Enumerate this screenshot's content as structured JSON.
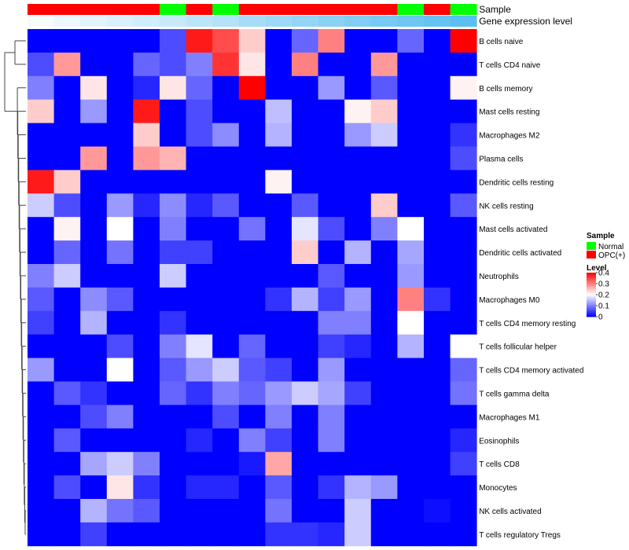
{
  "chart_data": {
    "type": "heatmap",
    "title": "",
    "annotation_tracks": [
      {
        "name": "Sample",
        "values": [
          "OPC(+)",
          "OPC(+)",
          "OPC(+)",
          "OPC(+)",
          "OPC(+)",
          "Normal",
          "OPC(+)",
          "Normal",
          "OPC(+)",
          "OPC(+)",
          "OPC(+)",
          "OPC(+)",
          "OPC(+)",
          "OPC(+)",
          "Normal",
          "OPC(+)",
          "Normal"
        ]
      },
      {
        "name": "Gene expression level",
        "values": [
          0.02,
          0.04,
          0.06,
          0.08,
          0.1,
          0.12,
          0.14,
          0.16,
          0.19,
          0.21,
          0.23,
          0.25,
          0.27,
          0.29,
          0.31,
          0.33,
          0.35
        ]
      }
    ],
    "rows": [
      "B cells naive",
      "T cells CD4 naive",
      "B cells memory",
      "Mast cells resting",
      "Macrophages M2",
      "Plasma cells",
      "Dendritic cells resting",
      "NK cells resting",
      "Mast cells activated",
      "Dendritic cells activated",
      "Neutrophils",
      "Macrophages M0",
      "T cells CD4 memory resting",
      "T cells follicular helper",
      "T cells CD4 memory activated",
      "T cells gamma delta",
      "Macrophages M1",
      "Eosinophils",
      "T cells CD8",
      "Monocytes",
      "NK cells activated",
      "T cells regulatory  Tregs"
    ],
    "values": [
      [
        0.0,
        0.0,
        0.0,
        0.0,
        0.0,
        0.06,
        0.38,
        0.34,
        0.24,
        0.0,
        0.08,
        0.3,
        0.0,
        0.0,
        0.08,
        0.0,
        0.4
      ],
      [
        0.06,
        0.28,
        0.0,
        0.0,
        0.08,
        0.06,
        0.1,
        0.36,
        0.22,
        0.0,
        0.3,
        0.0,
        0.0,
        0.28,
        0.0,
        0.0,
        0.0
      ],
      [
        0.1,
        0.0,
        0.22,
        0.0,
        0.03,
        0.22,
        0.08,
        0.0,
        0.4,
        0.0,
        0.0,
        0.12,
        0.0,
        0.07,
        0.0,
        0.0,
        0.21
      ],
      [
        0.24,
        0.0,
        0.12,
        0.0,
        0.38,
        0.0,
        0.06,
        0.0,
        0.0,
        0.15,
        0.0,
        0.0,
        0.21,
        0.24,
        0.0,
        0.0,
        0.0
      ],
      [
        0.0,
        0.0,
        0.0,
        0.0,
        0.24,
        0.0,
        0.06,
        0.11,
        0.0,
        0.14,
        0.0,
        0.0,
        0.12,
        0.16,
        0.0,
        0.0,
        0.04
      ],
      [
        0.0,
        0.0,
        0.28,
        0.0,
        0.28,
        0.26,
        0.0,
        0.0,
        0.0,
        0.0,
        0.0,
        0.0,
        0.0,
        0.0,
        0.0,
        0.0,
        0.06
      ],
      [
        0.38,
        0.24,
        0.0,
        0.0,
        0.0,
        0.0,
        0.0,
        0.0,
        0.0,
        0.21,
        0.0,
        0.0,
        0.0,
        0.0,
        0.0,
        0.0,
        0.0
      ],
      [
        0.16,
        0.06,
        0.0,
        0.12,
        0.03,
        0.11,
        0.03,
        0.07,
        0.0,
        0.0,
        0.07,
        0.0,
        0.0,
        0.24,
        0.0,
        0.0,
        0.07
      ],
      [
        0.0,
        0.21,
        0.0,
        0.2,
        0.0,
        0.1,
        0.0,
        0.0,
        0.09,
        0.0,
        0.18,
        0.06,
        0.0,
        0.1,
        0.2,
        0.0,
        0.0
      ],
      [
        0.0,
        0.08,
        0.0,
        0.09,
        0.0,
        0.05,
        0.05,
        0.0,
        0.0,
        0.0,
        0.24,
        0.0,
        0.14,
        0.0,
        0.13,
        0.0,
        0.0
      ],
      [
        0.1,
        0.16,
        0.0,
        0.0,
        0.0,
        0.16,
        0.0,
        0.0,
        0.0,
        0.0,
        0.0,
        0.07,
        0.0,
        0.0,
        0.12,
        0.0,
        0.0
      ],
      [
        0.07,
        0.0,
        0.11,
        0.07,
        0.0,
        0.0,
        0.0,
        0.0,
        0.0,
        0.04,
        0.14,
        0.05,
        0.12,
        0.0,
        0.3,
        0.04,
        0.0
      ],
      [
        0.05,
        0.0,
        0.14,
        0.0,
        0.0,
        0.04,
        0.0,
        0.0,
        0.0,
        0.0,
        0.0,
        0.1,
        0.1,
        0.0,
        0.2,
        0.0,
        0.0
      ],
      [
        0.0,
        0.0,
        0.0,
        0.06,
        0.0,
        0.1,
        0.18,
        0.0,
        0.08,
        0.0,
        0.0,
        0.05,
        0.03,
        0.0,
        0.14,
        0.0,
        0.2
      ],
      [
        0.12,
        0.0,
        0.0,
        0.2,
        0.0,
        0.07,
        0.12,
        0.16,
        0.07,
        0.05,
        0.0,
        0.12,
        0.0,
        0.0,
        0.0,
        0.0,
        0.08
      ],
      [
        0.0,
        0.07,
        0.04,
        0.0,
        0.0,
        0.08,
        0.04,
        0.1,
        0.08,
        0.12,
        0.16,
        0.13,
        0.05,
        0.0,
        0.0,
        0.0,
        0.09
      ],
      [
        0.0,
        0.0,
        0.06,
        0.1,
        0.0,
        0.0,
        0.0,
        0.06,
        0.0,
        0.1,
        0.0,
        0.1,
        0.0,
        0.0,
        0.0,
        0.0,
        0.0
      ],
      [
        0.0,
        0.07,
        0.0,
        0.0,
        0.0,
        0.0,
        0.03,
        0.0,
        0.1,
        0.05,
        0.0,
        0.1,
        0.0,
        0.0,
        0.0,
        0.0,
        0.03
      ],
      [
        0.0,
        0.0,
        0.13,
        0.16,
        0.1,
        0.0,
        0.0,
        0.0,
        0.02,
        0.27,
        0.0,
        0.0,
        0.0,
        0.0,
        0.0,
        0.0,
        0.05
      ],
      [
        0.0,
        0.06,
        0.0,
        0.22,
        0.04,
        0.0,
        0.03,
        0.03,
        0.0,
        0.07,
        0.0,
        0.04,
        0.14,
        0.12,
        0.0,
        0.0,
        0.0
      ],
      [
        0.0,
        0.0,
        0.14,
        0.09,
        0.07,
        0.0,
        0.0,
        0.0,
        0.0,
        0.09,
        0.0,
        0.0,
        0.16,
        0.0,
        0.0,
        0.01,
        0.0
      ],
      [
        0.0,
        0.0,
        0.05,
        0.0,
        0.0,
        0.0,
        0.0,
        0.0,
        0.0,
        0.04,
        0.04,
        0.03,
        0.16,
        0.0,
        0.0,
        0.0,
        0.0
      ]
    ],
    "legend": {
      "sample_title": "Sample",
      "sample_entries": [
        {
          "label": "Normal",
          "color": "#00ff00"
        },
        {
          "label": "OPC(+)",
          "color": "#ff0000"
        }
      ],
      "level_title": "Level",
      "level_ticks": [
        "0.4",
        "0.3",
        "0.2",
        "0.1",
        "0"
      ],
      "level_tick_values": [
        0.4,
        0.3,
        0.2,
        0.1,
        0.0
      ]
    },
    "color_scale": {
      "low": "#0000ff",
      "mid": "#ffffff",
      "high": "#ff0000",
      "domain": [
        0,
        0.2,
        0.4
      ]
    },
    "gene_expression_colors": {
      "low": "#ffffff",
      "high": "#5bbff0"
    },
    "row_dendrogram": true,
    "legend_placement": "right"
  }
}
